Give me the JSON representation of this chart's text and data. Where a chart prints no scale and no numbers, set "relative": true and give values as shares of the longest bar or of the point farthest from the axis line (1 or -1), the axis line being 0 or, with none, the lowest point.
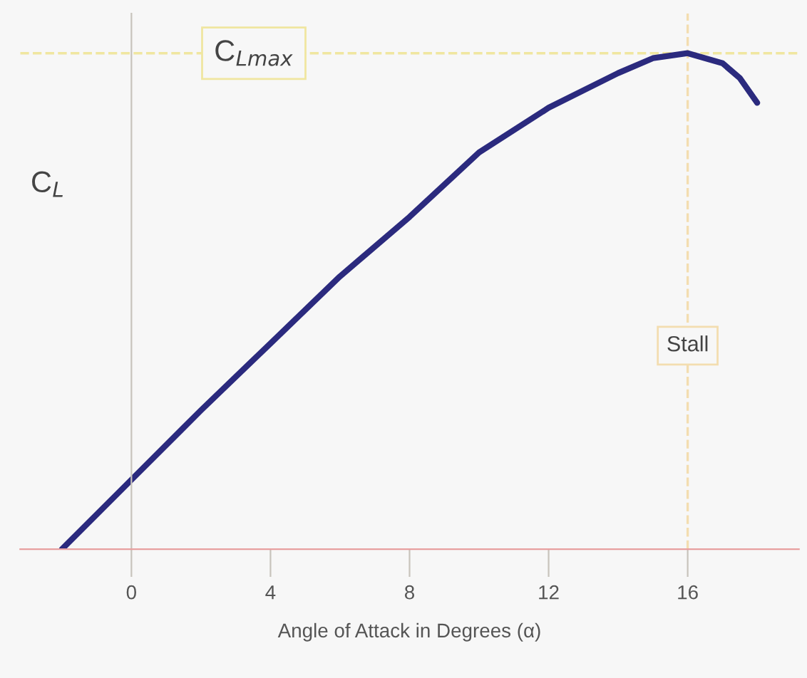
{
  "chart_data": {
    "type": "line",
    "relative": true,
    "ylabel": "C$_{L}$",
    "xlabel": "Angle of Attack in Degrees (α)",
    "x": [
      -2,
      0,
      2,
      4,
      6,
      8,
      10,
      12,
      14,
      15,
      16,
      17,
      17.5,
      18
    ],
    "series": [
      {
        "color": "#2b2a7e",
        "values": [
          0,
          0.14,
          0.28,
          0.415,
          0.55,
          0.67,
          0.8,
          0.89,
          0.96,
          0.99,
          1.0,
          0.98,
          0.95,
          0.9
        ]
      }
    ],
    "xlim": [
      -3.2,
      19.2
    ],
    "xticks": [
      0,
      4,
      8,
      12,
      16
    ],
    "ref_lines": [
      {
        "axis": "y",
        "value": 1.0,
        "label": "C$_{Lmax}$",
        "color": "#f0e6a0",
        "line_style": "dashed"
      },
      {
        "axis": "x",
        "value": 16,
        "label": "Stall",
        "color": "#f3ddb0",
        "line_style": "dashed"
      }
    ],
    "grid": false,
    "legend": false,
    "marker": "none",
    "line_style": "solid"
  }
}
